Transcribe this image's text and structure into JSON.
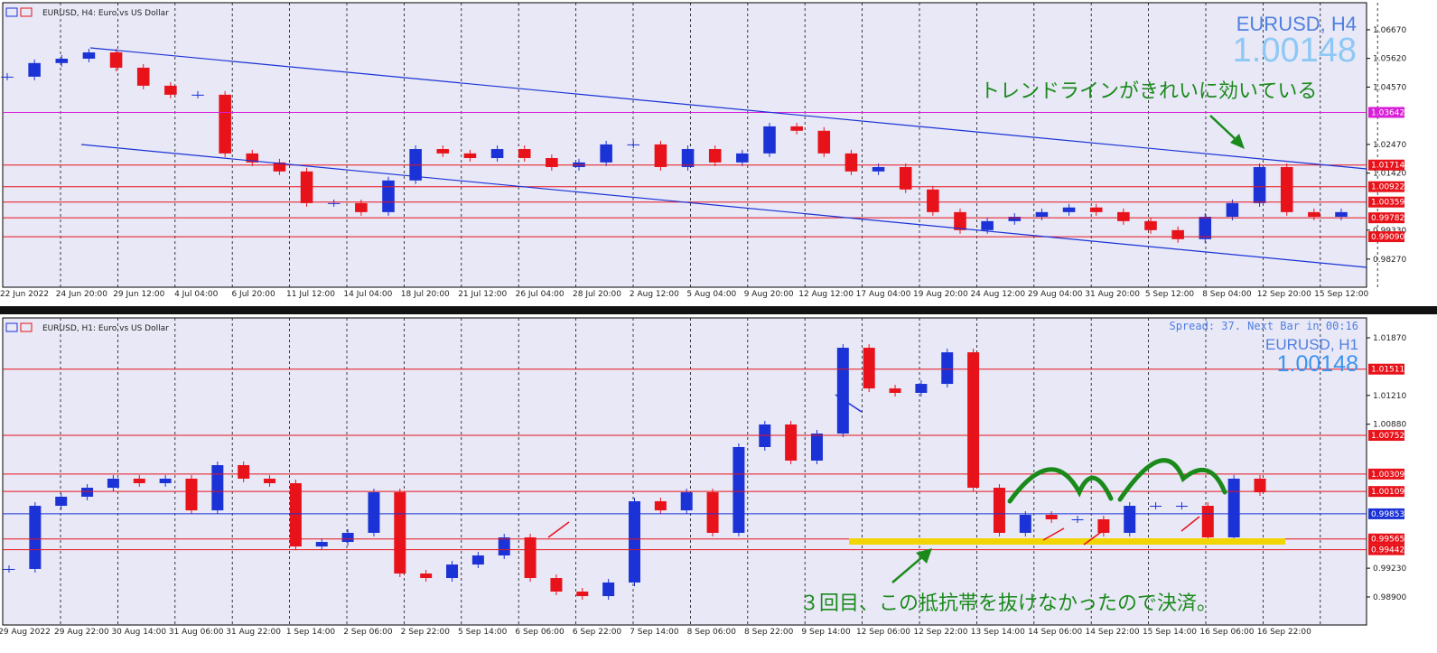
{
  "chart_data": [
    {
      "type": "candlestick",
      "title": "EURUSD, H4: Euro vs US Dollar",
      "symbol": "EURUSD, H4",
      "price": "1.00148",
      "annotation": "トレンドラインがきれいに効いている",
      "up_color": "#1b33d6",
      "down_color": "#e8121a",
      "ylim": [
        0.9724,
        1.0766
      ],
      "yticks": [
        {
          "value": 1.0667,
          "label": "1.06670"
        },
        {
          "value": 1.0562,
          "label": "1.05620"
        },
        {
          "value": 1.0457,
          "label": "1.04570"
        },
        {
          "value": 1.0247,
          "label": "1.02470"
        },
        {
          "value": 1.0142,
          "label": "1.01420"
        },
        {
          "value": 0.9933,
          "label": "0.99330"
        },
        {
          "value": 0.9827,
          "label": "0.98270"
        }
      ],
      "levels": [
        {
          "value": 1.03642,
          "color": "#d81fd8"
        },
        {
          "value": 1.01714,
          "color": "#e8121a"
        },
        {
          "value": 1.00922,
          "color": "#e8121a"
        },
        {
          "value": 1.00359,
          "color": "#e8121a"
        },
        {
          "value": 0.99782,
          "color": "#e8121a"
        },
        {
          "value": 0.9909,
          "label": "0.99090",
          "color": "#e8121a"
        }
      ],
      "time_labels": [
        "22 Jun 2022",
        "24 Jun 20:00",
        "29 Jun 12:00",
        "4 Jul 04:00",
        "6 Jul 20:00",
        "11 Jul 12:00",
        "14 Jul 04:00",
        "18 Jul 20:00",
        "21 Jul 12:00",
        "26 Jul 04:00",
        "28 Jul 20:00",
        "2 Aug 12:00",
        "5 Aug 04:00",
        "9 Aug 20:00",
        "12 Aug 12:00",
        "17 Aug 04:00",
        "19 Aug 20:00",
        "24 Aug 12:00",
        "29 Aug 04:00",
        "31 Aug 20:00",
        "5 Sep 12:00",
        "8 Sep 04:00",
        "12 Sep 20:00",
        "15 Sep 12:00"
      ],
      "closes": [
        1.0495,
        1.0545,
        1.0561,
        1.0584,
        1.0528,
        1.0462,
        1.0429,
        1.0429,
        1.0214,
        1.0181,
        1.0148,
        1.0032,
        1.0032,
        0.9999,
        1.0115,
        1.023,
        1.0214,
        1.0197,
        1.023,
        1.0197,
        1.0164,
        1.0181,
        1.0247,
        1.0247,
        1.0164,
        1.023,
        1.0181,
        1.0214,
        1.0313,
        1.0297,
        1.0214,
        1.0148,
        1.0164,
        1.0082,
        0.9999,
        0.9933,
        0.9966,
        0.9982,
        0.9999,
        1.0016,
        0.9999,
        0.9966,
        0.9933,
        0.99,
        0.9982,
        1.0032,
        1.0164,
        0.9999,
        0.9982,
        0.9999
      ]
    },
    {
      "type": "candlestick",
      "title": "EURUSD, H1: Euro vs US Dollar",
      "symbol": "EURUSD, H1",
      "price": "1.00148",
      "status": "Spread: 37. Next Bar in 00:16",
      "annotation": "３回目、この抵抗帯を抜けなかったので決済。",
      "up_color": "#1b33d6",
      "down_color": "#e8121a",
      "ylim": [
        0.98579,
        1.02098
      ],
      "yticks": [
        {
          "value": 1.0187,
          "label": "1.01870"
        },
        {
          "value": 1.0121,
          "label": "1.01210"
        },
        {
          "value": 1.0088,
          "label": "1.00880"
        },
        {
          "value": 0.9923,
          "label": "0.99230"
        },
        {
          "value": 0.989,
          "label": "0.98900"
        }
      ],
      "levels": [
        {
          "value": 1.01511,
          "color": "#e8121a"
        },
        {
          "value": 1.00752,
          "color": "#e8121a"
        },
        {
          "value": 1.00309,
          "color": "#e8121a"
        },
        {
          "value": 1.00109,
          "color": "#e8121a"
        },
        {
          "value": 0.99853,
          "color": "#1b33d6"
        },
        {
          "value": 0.99565,
          "color": "#e8121a"
        },
        {
          "value": 0.99442,
          "color": "#e8121a"
        }
      ],
      "time_labels": [
        "29 Aug 2022",
        "29 Aug 22:00",
        "30 Aug 14:00",
        "31 Aug 06:00",
        "31 Aug 22:00",
        "1 Sep 14:00",
        "2 Sep 06:00",
        "2 Sep 22:00",
        "5 Sep 14:00",
        "6 Sep 06:00",
        "6 Sep 22:00",
        "7 Sep 14:00",
        "8 Sep 06:00",
        "8 Sep 22:00",
        "9 Sep 14:00",
        "12 Sep 06:00",
        "12 Sep 22:00",
        "13 Sep 14:00",
        "14 Sep 06:00",
        "14 Sep 22:00",
        "15 Sep 14:00",
        "16 Sep 06:00",
        "16 Sep 22:00"
      ],
      "closes": [
        0.99221,
        0.99945,
        1.00049,
        1.00152,
        1.00256,
        1.00204,
        1.00256,
        0.99893,
        1.00411,
        1.00256,
        1.00204,
        0.99479,
        0.99531,
        0.99635,
        1.001,
        0.99169,
        0.99117,
        0.99272,
        0.99376,
        0.99583,
        0.99117,
        0.98962,
        0.9891,
        0.99066,
        0.99997,
        0.99893,
        1.001,
        0.99635,
        1.00618,
        1.00877,
        1.00463,
        1.00773,
        1.01756,
        1.0129,
        1.01239,
        1.01342,
        1.01704,
        1.00152,
        0.99635,
        0.99842,
        0.9979,
        0.9979,
        0.99635,
        0.99945,
        0.99945,
        0.99945,
        0.99583,
        1.00256,
        1.001
      ]
    }
  ]
}
